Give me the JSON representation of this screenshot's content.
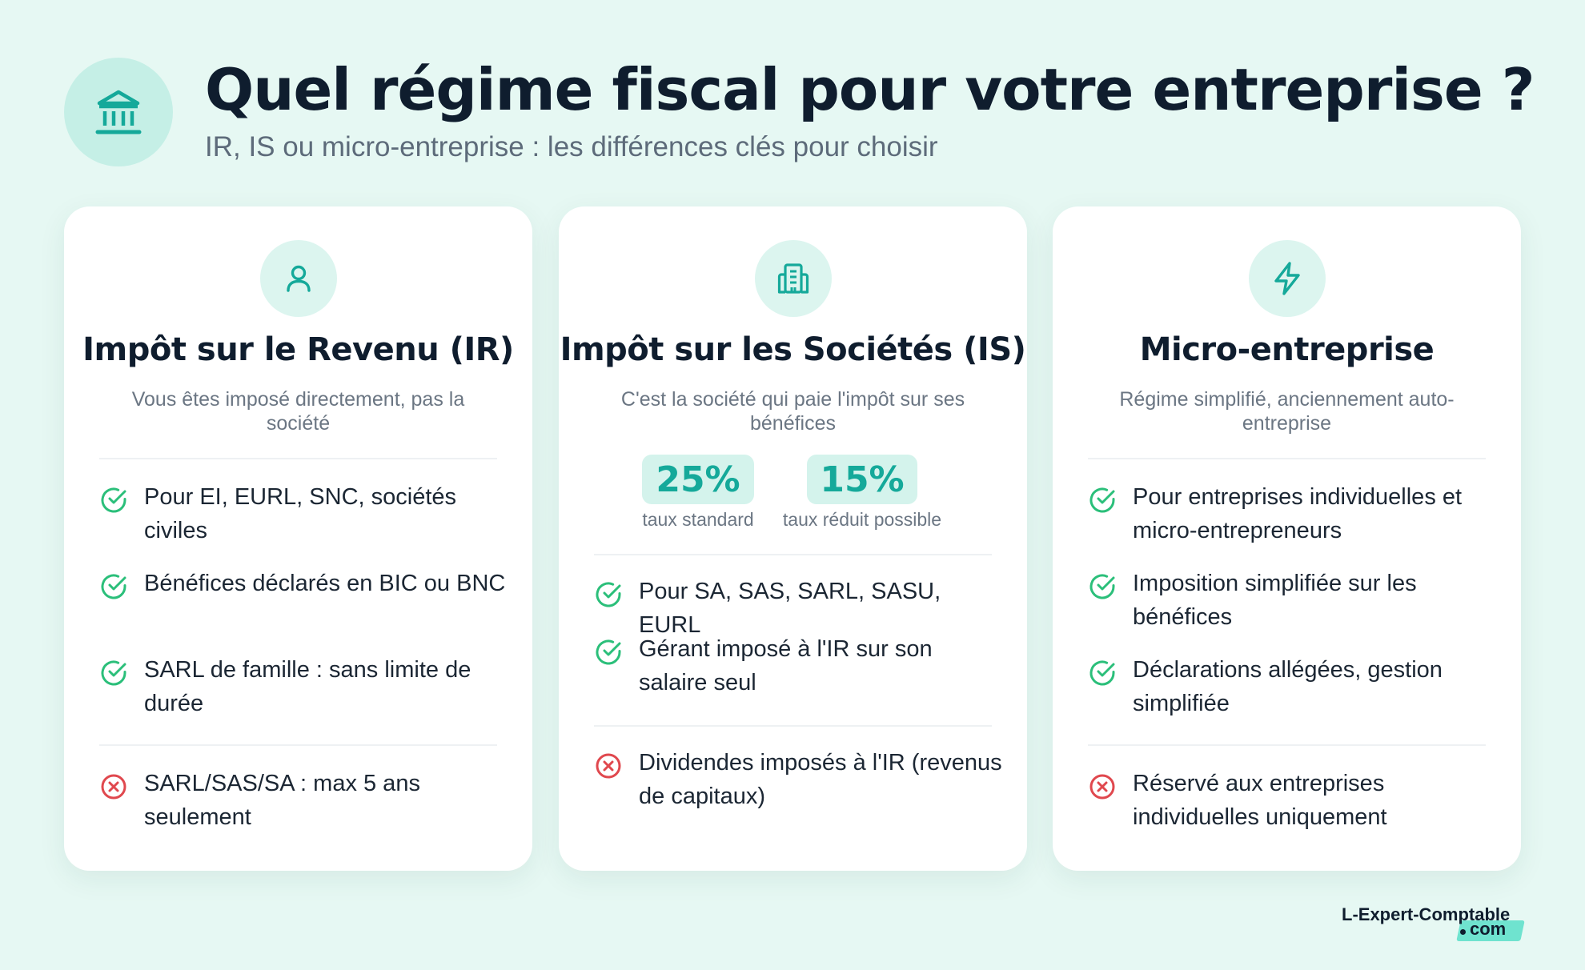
{
  "header": {
    "title": "Quel régime fiscal pour votre entreprise ?",
    "subtitle": "IR, IS ou micro-entreprise : les différences clés pour choisir",
    "icon": "bank-building-icon"
  },
  "cards": {
    "ir": {
      "icon": "person-icon",
      "title": "Impôt sur le Revenu (IR)",
      "description": "Vous êtes imposé directement, pas la société",
      "pros": [
        "Pour EI, EURL, SNC, sociétés civiles",
        "Bénéfices déclarés en BIC ou BNC",
        "SARL de famille : sans limite de durée"
      ],
      "cons": [
        "SARL/SAS/SA : max 5 ans seulement"
      ]
    },
    "is": {
      "icon": "office-building-icon",
      "title": "Impôt sur les Sociétés (IS)",
      "description": "C'est la société qui paie l'impôt sur ses bénéfices",
      "rates": [
        {
          "value": "25%",
          "label": "taux standard"
        },
        {
          "value": "15%",
          "label": "taux réduit possible"
        }
      ],
      "pros": [
        "Pour SA, SAS, SARL, SASU, EURL",
        "Gérant imposé à l'IR sur son salaire seul"
      ],
      "cons": [
        "Dividendes imposés à l'IR (revenus de capitaux)"
      ]
    },
    "micro": {
      "icon": "lightning-icon",
      "title": "Micro-entreprise",
      "description": "Régime simplifié, anciennement auto-entreprise",
      "pros": [
        "Pour entreprises individuelles et micro-entrepreneurs",
        "Imposition simplifiée sur les bénéfices",
        "Déclarations allégées, gestion simplifiée"
      ],
      "cons": [
        "Réservé aux entreprises individuelles uniquement"
      ]
    }
  },
  "logo": {
    "main": "L-Expert-Comptable",
    "suffix": "com"
  },
  "colors": {
    "accent": "#15a99a",
    "check": "#2bbf7a",
    "cross": "#e0484e",
    "background": "#e6f8f3"
  }
}
